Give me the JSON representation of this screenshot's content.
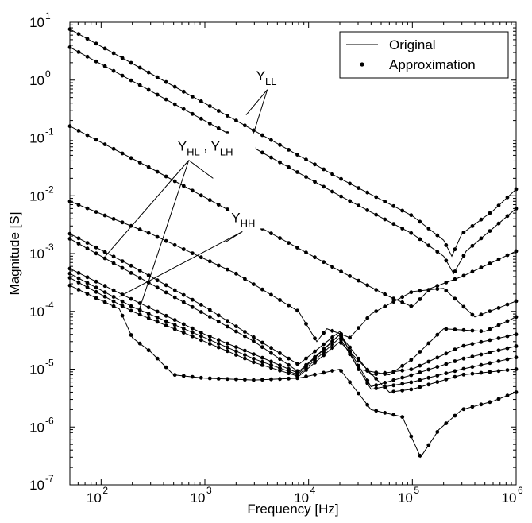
{
  "chart_data": {
    "type": "line",
    "xlabel": "Frequency [Hz]",
    "ylabel": "Magnitude [S]",
    "xscale": "log",
    "yscale": "log",
    "xlim": [
      50,
      1000000
    ],
    "ylim": [
      1e-07,
      10
    ],
    "grid": false,
    "legend": {
      "placement": "top-right",
      "entries": [
        {
          "label": "Original",
          "style": "line"
        },
        {
          "label": "Approximation",
          "style": "dot"
        }
      ]
    },
    "x_ticks": [
      {
        "value": 100,
        "base": "10",
        "exp": "2"
      },
      {
        "value": 1000,
        "base": "10",
        "exp": "3"
      },
      {
        "value": 10000,
        "base": "10",
        "exp": "4"
      },
      {
        "value": 100000,
        "base": "10",
        "exp": "5"
      },
      {
        "value": 1000000,
        "base": "10",
        "exp": "6"
      }
    ],
    "y_ticks": [
      {
        "value": 1e-07,
        "base": "10",
        "exp": "-7"
      },
      {
        "value": 1e-06,
        "base": "10",
        "exp": "-6"
      },
      {
        "value": 1e-05,
        "base": "10",
        "exp": "-5"
      },
      {
        "value": 0.0001,
        "base": "10",
        "exp": "-4"
      },
      {
        "value": 0.001,
        "base": "10",
        "exp": "-3"
      },
      {
        "value": 0.01,
        "base": "10",
        "exp": "-2"
      },
      {
        "value": 0.1,
        "base": "10",
        "exp": "-1"
      },
      {
        "value": 1,
        "base": "10",
        "exp": "0"
      },
      {
        "value": 10,
        "base": "10",
        "exp": "1"
      }
    ],
    "annotations": [
      {
        "main": "Y",
        "sub": "LL",
        "main2": "",
        "sub2": "",
        "x": 4000,
        "y": 1.0,
        "pointers": [
          [
            2500,
            0.25
          ],
          [
            2900,
            0.11
          ]
        ]
      },
      {
        "main": "Y",
        "sub": "HL",
        "main2": ", Y",
        "sub2": "LH",
        "x": 700,
        "y": 0.06,
        "pointers": [
          [
            1200,
            0.02
          ],
          [
            110,
            0.0009
          ],
          [
            230,
            0.0001
          ]
        ]
      },
      {
        "main": "Y",
        "sub": "HH",
        "main2": "",
        "sub2": "",
        "x": 2300,
        "y": 0.0035,
        "pointers": [
          [
            1600,
            0.0016
          ],
          [
            150,
            0.00018
          ]
        ]
      }
    ],
    "series": [
      {
        "points": [
          [
            50,
            7.6
          ],
          [
            300,
            1.3
          ],
          [
            2000,
            0.2
          ],
          [
            20000,
            0.02
          ],
          [
            100000,
            0.0045
          ],
          [
            200000,
            0.0017
          ],
          [
            240000,
            0.0009
          ],
          [
            300000,
            0.0022
          ],
          [
            600000,
            0.0055
          ],
          [
            1000000,
            0.013
          ]
        ]
      },
      {
        "points": [
          [
            50,
            3.7
          ],
          [
            300,
            0.65
          ],
          [
            2000,
            0.1
          ],
          [
            20000,
            0.01
          ],
          [
            100000,
            0.0022
          ],
          [
            200000,
            0.0009
          ],
          [
            250000,
            0.00045
          ],
          [
            330000,
            0.0011
          ],
          [
            1000000,
            0.006
          ]
        ]
      },
      {
        "points": [
          [
            50,
            0.16
          ],
          [
            300,
            0.03
          ],
          [
            2000,
            0.0048
          ],
          [
            20000,
            0.0005
          ],
          [
            60000,
            0.00018
          ],
          [
            100000,
            0.00012
          ],
          [
            150000,
            0.00025
          ],
          [
            300000,
            0.0004
          ],
          [
            1000000,
            0.0011
          ]
        ]
      },
      {
        "points": [
          [
            50,
            0.008
          ],
          [
            300,
            0.0022
          ],
          [
            2000,
            0.00045
          ],
          [
            8000,
            0.0001
          ],
          [
            12000,
            3e-05
          ],
          [
            15000,
            5e-05
          ],
          [
            25000,
            3.5e-05
          ],
          [
            40000,
            9e-05
          ],
          [
            100000,
            0.00022
          ],
          [
            200000,
            0.00025
          ],
          [
            400000,
            8e-05
          ],
          [
            1000000,
            0.00015
          ]
        ]
      },
      {
        "points": [
          [
            50,
            0.0022
          ],
          [
            200,
            0.0006
          ],
          [
            1000,
            0.00012
          ],
          [
            3000,
            3.5e-05
          ],
          [
            8000,
            1.2e-05
          ],
          [
            15000,
            3e-05
          ],
          [
            20000,
            4.5e-05
          ],
          [
            30000,
            1e-05
          ],
          [
            60000,
            8e-06
          ],
          [
            100000,
            1.5e-05
          ],
          [
            200000,
            5e-05
          ],
          [
            500000,
            4.5e-05
          ],
          [
            1000000,
            8e-05
          ]
        ]
      },
      {
        "points": [
          [
            50,
            0.0018
          ],
          [
            200,
            0.00045
          ],
          [
            1000,
            9e-05
          ],
          [
            3000,
            3e-05
          ],
          [
            8000,
            9e-06
          ],
          [
            20000,
            4e-05
          ],
          [
            40000,
            8e-06
          ],
          [
            100000,
            1e-05
          ],
          [
            300000,
            2.5e-05
          ],
          [
            1000000,
            4e-05
          ]
        ]
      },
      {
        "points": [
          [
            50,
            0.00055
          ],
          [
            200,
            0.00016
          ],
          [
            1000,
            4e-05
          ],
          [
            3000,
            1.8e-05
          ],
          [
            8000,
            8.5e-06
          ],
          [
            20000,
            4e-05
          ],
          [
            40000,
            5e-06
          ],
          [
            100000,
            8e-06
          ],
          [
            300000,
            1.5e-05
          ],
          [
            1000000,
            2.5e-05
          ]
        ]
      },
      {
        "points": [
          [
            50,
            0.00045
          ],
          [
            200,
            0.00012
          ],
          [
            1000,
            3.5e-05
          ],
          [
            3000,
            1.5e-05
          ],
          [
            8000,
            8e-06
          ],
          [
            20000,
            3.5e-05
          ],
          [
            40000,
            4.5e-06
          ],
          [
            100000,
            6e-06
          ],
          [
            300000,
            1e-05
          ],
          [
            1000000,
            1.6e-05
          ]
        ]
      },
      {
        "points": [
          [
            50,
            0.00038
          ],
          [
            200,
            0.0001
          ],
          [
            1000,
            3e-05
          ],
          [
            3000,
            1.3e-05
          ],
          [
            8000,
            7.5e-06
          ],
          [
            20000,
            3e-05
          ],
          [
            60000,
            4e-06
          ],
          [
            100000,
            4.5e-06
          ],
          [
            300000,
            8e-06
          ],
          [
            1000000,
            1e-05
          ]
        ]
      },
      {
        "points": [
          [
            50,
            0.00028
          ],
          [
            150,
            0.00011
          ],
          [
            200,
            3.5e-05
          ],
          [
            300,
            2e-05
          ],
          [
            500,
            8e-06
          ],
          [
            1000,
            7e-06
          ],
          [
            3000,
            6.5e-06
          ],
          [
            8000,
            7e-06
          ],
          [
            20000,
            1e-05
          ],
          [
            40000,
            2e-06
          ],
          [
            80000,
            1.5e-06
          ],
          [
            120000,
            3e-07
          ],
          [
            180000,
            9e-07
          ],
          [
            300000,
            2e-06
          ],
          [
            600000,
            2.8e-06
          ],
          [
            1000000,
            4e-06
          ]
        ]
      }
    ]
  }
}
